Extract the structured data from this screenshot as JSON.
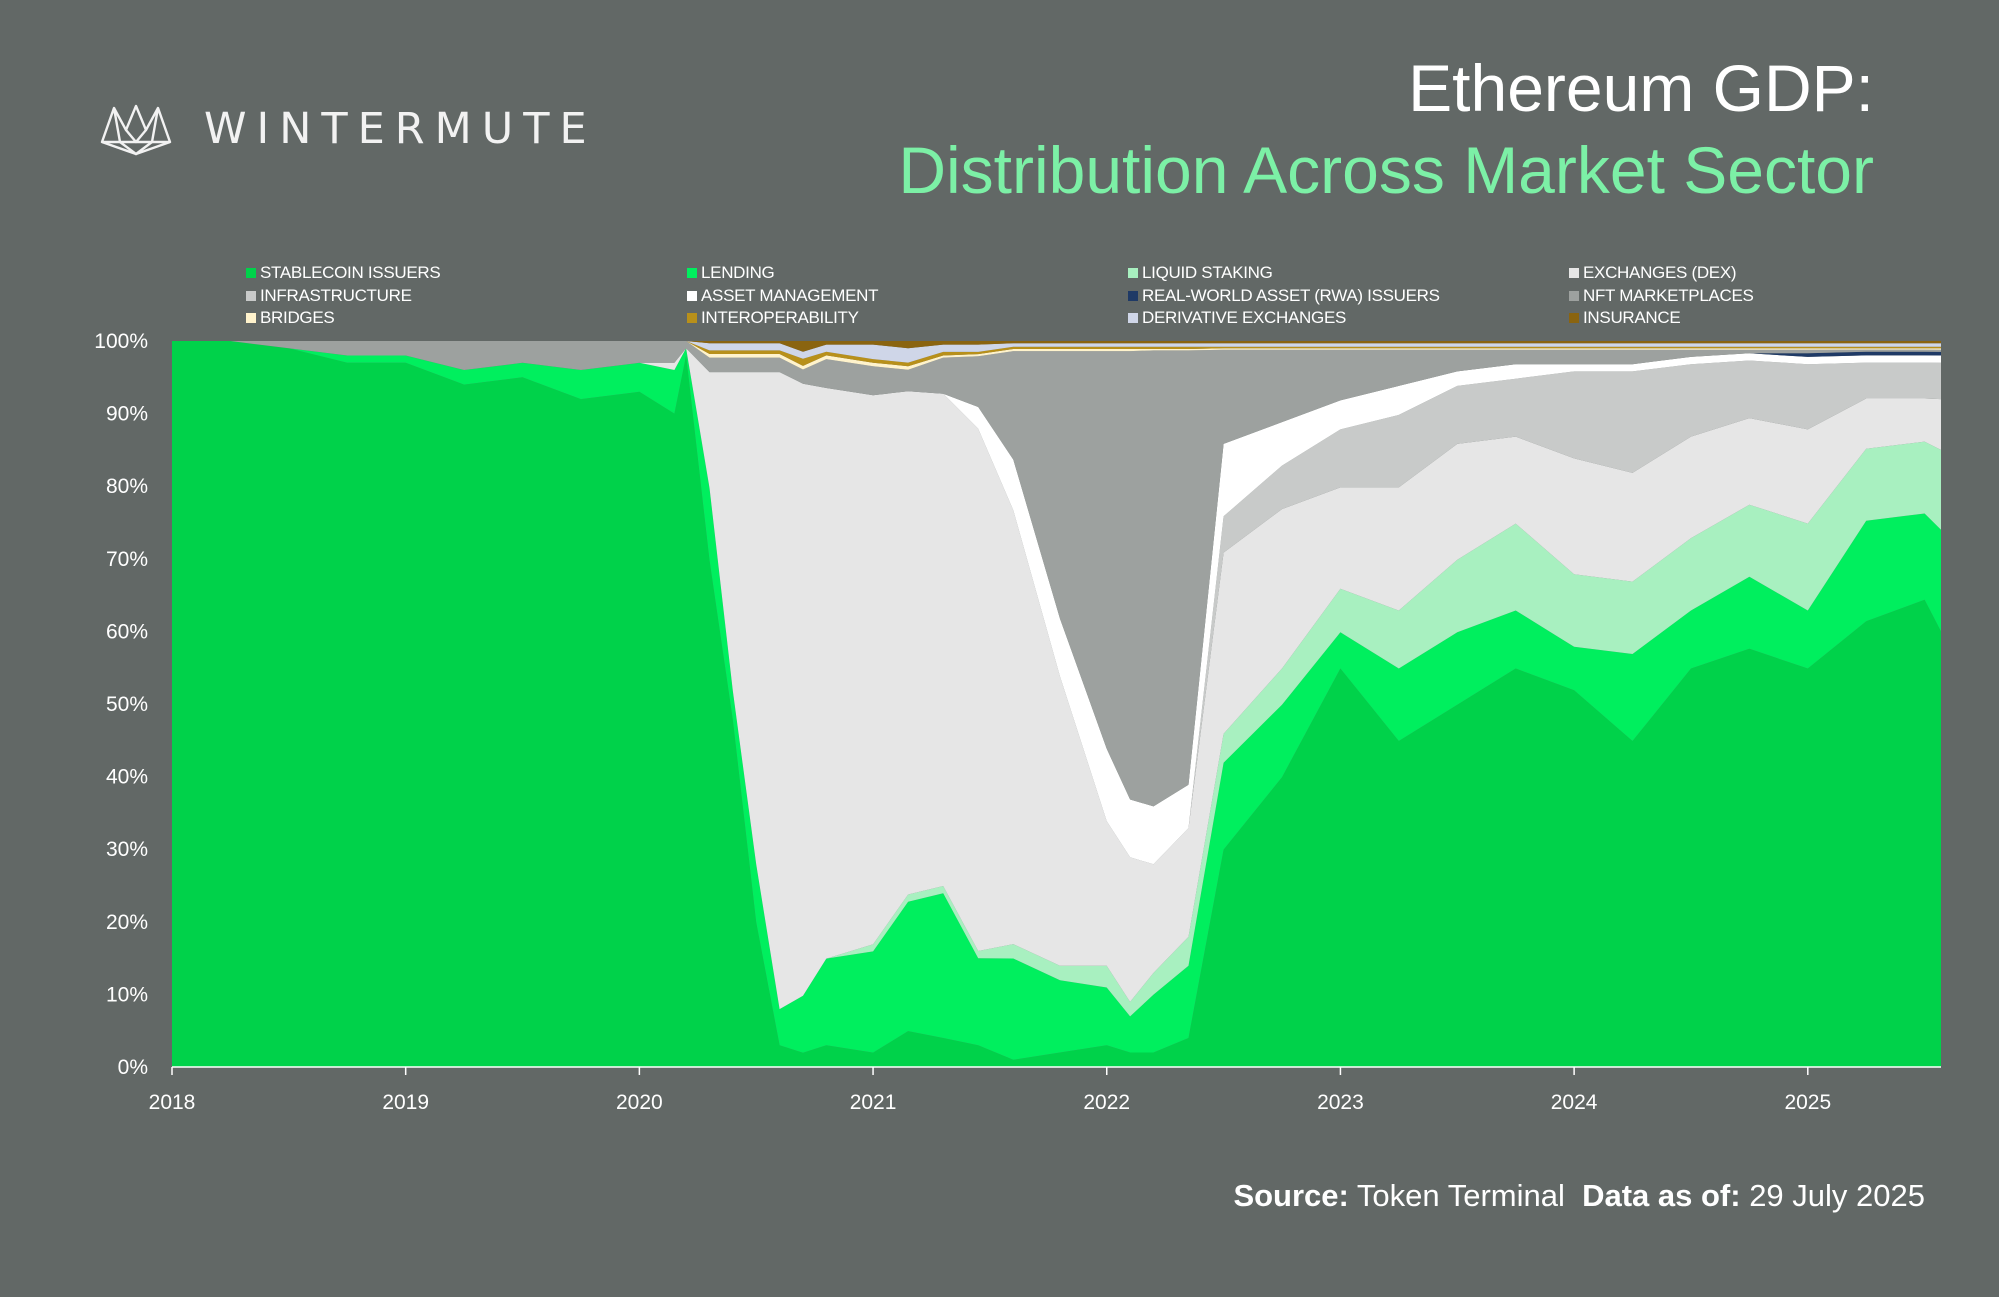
{
  "logo": {
    "icon": "wintermute-crown-icon",
    "text": "WINTERMUTE"
  },
  "title": {
    "line1": "Ethereum GDP:",
    "line2": "Distribution Across Market Sector"
  },
  "source": {
    "label": "Source:",
    "value": "Token Terminal",
    "date_label": "Data as of:",
    "date_value": "29 July 2025"
  },
  "legend": [
    {
      "name": "STABLECOIN ISSUERS",
      "color": "#00d24a"
    },
    {
      "name": "LENDING",
      "color": "#00ef5e"
    },
    {
      "name": "LIQUID STAKING",
      "color": "#a8f0c0"
    },
    {
      "name": "EXCHANGES (DEX)",
      "color": "#e6e6e6"
    },
    {
      "name": "INFRASTRUCTURE",
      "color": "#c8cac9"
    },
    {
      "name": "ASSET MANAGEMENT",
      "color": "#ffffff"
    },
    {
      "name": "REAL-WORLD ASSET (RWA) ISSUERS",
      "color": "#1f3a66"
    },
    {
      "name": "NFT MARKETPLACES",
      "color": "#9da19f"
    },
    {
      "name": "BRIDGES",
      "color": "#fff3cc"
    },
    {
      "name": "INTEROPERABILITY",
      "color": "#b8901a"
    },
    {
      "name": "DERIVATIVE EXCHANGES",
      "color": "#cfd6e8"
    },
    {
      "name": "INSURANCE",
      "color": "#8a6410"
    }
  ],
  "chart_data": {
    "type": "area",
    "stacked": "percent",
    "x": [
      2018.0,
      2018.25,
      2018.5,
      2018.75,
      2019.0,
      2019.25,
      2019.5,
      2019.75,
      2020.0,
      2020.15,
      2020.2,
      2020.3,
      2020.4,
      2020.5,
      2020.6,
      2020.7,
      2020.8,
      2021.0,
      2021.15,
      2021.3,
      2021.45,
      2021.6,
      2021.8,
      2022.0,
      2022.1,
      2022.2,
      2022.35,
      2022.5,
      2022.75,
      2023.0,
      2023.25,
      2023.5,
      2023.75,
      2024.0,
      2024.25,
      2024.5,
      2024.75,
      2025.0,
      2025.25,
      2025.5,
      2025.57
    ],
    "series": [
      {
        "name": "STABLECOIN ISSUERS",
        "values": [
          100,
          100,
          99,
          97,
          97,
          94,
          95,
          92,
          93,
          90,
          98,
          70,
          48,
          20,
          3,
          2,
          3,
          2,
          5,
          4,
          3,
          1,
          2,
          3,
          2,
          2,
          4,
          30,
          40,
          55,
          45,
          50,
          55,
          52,
          45,
          55,
          58,
          55,
          62,
          65,
          60
        ]
      },
      {
        "name": "LENDING",
        "values": [
          0,
          0,
          0,
          1,
          1,
          2,
          2,
          4,
          4,
          6,
          1,
          10,
          4,
          8,
          5,
          8,
          12,
          14,
          18,
          20,
          12,
          14,
          10,
          8,
          5,
          8,
          10,
          12,
          10,
          5,
          10,
          10,
          8,
          6,
          12,
          8,
          10,
          8,
          14,
          12,
          14
        ]
      },
      {
        "name": "LIQUID STAKING",
        "values": [
          0,
          0,
          0,
          0,
          0,
          0,
          0,
          0,
          0,
          0,
          0,
          0,
          0,
          0,
          0,
          0,
          0,
          1,
          1,
          1,
          1,
          2,
          2,
          3,
          2,
          3,
          4,
          4,
          5,
          6,
          8,
          10,
          12,
          10,
          10,
          10,
          10,
          12,
          10,
          10,
          11
        ]
      },
      {
        "name": "EXCHANGES (DEX)",
        "values": [
          0,
          0,
          0,
          0,
          0,
          0,
          0,
          0,
          0,
          1,
          0,
          16,
          44,
          68,
          88,
          86,
          79,
          76,
          70,
          68,
          72,
          60,
          40,
          20,
          20,
          15,
          15,
          25,
          22,
          14,
          17,
          16,
          12,
          16,
          15,
          14,
          12,
          13,
          7,
          6,
          7
        ]
      },
      {
        "name": "INFRASTRUCTURE",
        "values": [
          0,
          0,
          0,
          0,
          0,
          0,
          0,
          0,
          0,
          0,
          0,
          0,
          0,
          0,
          0,
          0,
          0,
          0,
          0,
          0,
          0,
          0,
          0,
          0,
          0,
          0,
          0,
          5,
          6,
          8,
          10,
          8,
          8,
          12,
          14,
          10,
          8,
          9,
          5,
          5,
          5
        ]
      },
      {
        "name": "ASSET MANAGEMENT",
        "values": [
          0,
          0,
          0,
          0,
          0,
          0,
          0,
          0,
          0,
          0,
          0,
          0,
          0,
          0,
          0,
          0,
          0,
          0,
          0,
          0,
          3,
          7,
          8,
          10,
          8,
          8,
          6,
          10,
          6,
          4,
          4,
          2,
          2,
          1,
          1,
          1,
          1,
          1,
          1,
          1,
          1
        ]
      },
      {
        "name": "REAL-WORLD ASSET (RWA) ISSUERS",
        "values": [
          0,
          0,
          0,
          0,
          0,
          0,
          0,
          0,
          0,
          0,
          0,
          0,
          0,
          0,
          0,
          0,
          0,
          0,
          0,
          0,
          0,
          0,
          0,
          0,
          0,
          0,
          0,
          0,
          0,
          0,
          0,
          0,
          0,
          0,
          0,
          0,
          0,
          0.5,
          0.5,
          0.5,
          0.5
        ]
      },
      {
        "name": "NFT MARKETPLACES",
        "values": [
          0,
          0,
          1,
          2,
          2,
          4,
          3,
          4,
          3,
          3,
          1,
          2,
          2,
          2,
          2,
          2,
          4,
          4,
          3,
          5,
          7,
          15,
          37,
          55,
          62,
          63,
          60,
          13,
          10,
          7,
          5,
          3,
          2,
          2,
          2,
          1,
          0.5,
          0.5,
          0.3,
          0.3,
          0.3
        ]
      },
      {
        "name": "BRIDGES",
        "values": [
          0,
          0,
          0,
          0,
          0,
          0,
          0,
          0,
          0,
          0,
          0,
          0.5,
          0.5,
          0.5,
          0.5,
          0.5,
          0.5,
          0.5,
          0.5,
          0.3,
          0.3,
          0.3,
          0.3,
          0.3,
          0.3,
          0.2,
          0.2,
          0.2,
          0.2,
          0.2,
          0.2,
          0.2,
          0.2,
          0.2,
          0.2,
          0.2,
          0.2,
          0.2,
          0.2,
          0.2,
          0.2
        ]
      },
      {
        "name": "INTEROPERABILITY",
        "values": [
          0,
          0,
          0,
          0,
          0,
          0,
          0,
          0,
          0,
          0,
          0,
          0.5,
          0.5,
          0.5,
          0.5,
          1,
          0.5,
          0.5,
          0.5,
          0.5,
          0.3,
          0.3,
          0.3,
          0.3,
          0.3,
          0.3,
          0.3,
          0.2,
          0.2,
          0.2,
          0.2,
          0.2,
          0.2,
          0.2,
          0.2,
          0.2,
          0.2,
          0.2,
          0.2,
          0.2,
          0.2
        ]
      },
      {
        "name": "DERIVATIVE EXCHANGES",
        "values": [
          0,
          0,
          0,
          0,
          0,
          0,
          0,
          0,
          0,
          0,
          0,
          1,
          1,
          1,
          1,
          1,
          1,
          2,
          2,
          1,
          1,
          0.5,
          0.5,
          0.5,
          0.5,
          0.5,
          0.5,
          0.5,
          0.5,
          0.5,
          0.5,
          0.5,
          0.5,
          0.5,
          0.5,
          0.5,
          0.5,
          0.5,
          0.5,
          0.5,
          0.5
        ]
      },
      {
        "name": "INSURANCE",
        "values": [
          0,
          0,
          0,
          0,
          0,
          0,
          0,
          0,
          0,
          0,
          0,
          0.3,
          0.3,
          0.3,
          0.3,
          1.5,
          0.5,
          0.5,
          1,
          0.5,
          0.5,
          0.3,
          0.3,
          0.3,
          0.3,
          0.3,
          0.3,
          0.3,
          0.3,
          0.3,
          0.3,
          0.3,
          0.3,
          0.3,
          0.3,
          0.3,
          0.3,
          0.3,
          0.3,
          0.3,
          0.3
        ]
      }
    ],
    "xticks": [
      "2018",
      "2019",
      "2020",
      "2021",
      "2022",
      "2023",
      "2024",
      "2025"
    ],
    "yticks": [
      "0%",
      "10%",
      "20%",
      "30%",
      "40%",
      "50%",
      "60%",
      "70%",
      "80%",
      "90%",
      "100%"
    ],
    "xlim": [
      2018,
      2025.57
    ],
    "ylim": [
      0,
      100
    ],
    "legend_position": "top"
  }
}
